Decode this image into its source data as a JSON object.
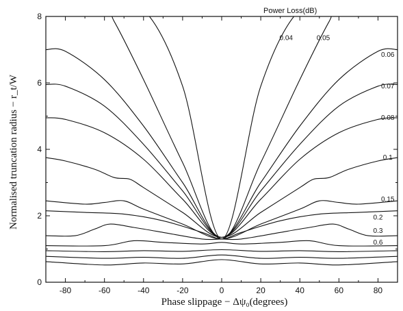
{
  "chart_data": {
    "type": "line",
    "title": "",
    "xlabel": "Phase slippage − Δψ₀(degrees)",
    "ylabel": "Normalised truncation radius − r_t/W",
    "xlim": [
      -90,
      90
    ],
    "ylim": [
      0,
      8
    ],
    "xticks": [
      "-80",
      "-60",
      "-40",
      "-20",
      "0",
      "20",
      "40",
      "60",
      "80"
    ],
    "yticks": [
      "0",
      "2",
      "4",
      "6",
      "8"
    ],
    "grid": false,
    "legend_title": "Power Loss(dB)",
    "series": [
      {
        "name": "0.04",
        "label_at": [
          33,
          7.35
        ],
        "x": [
          -90,
          -60,
          -40,
          -20,
          0,
          20,
          40,
          60,
          90
        ],
        "y": [
          8.2,
          8.2,
          8.2,
          5.9,
          1.3,
          5.9,
          8.2,
          8.2,
          8.2
        ]
      },
      {
        "name": "0.05",
        "label_at": [
          52,
          7.35
        ],
        "x": [
          -90,
          -60,
          -55,
          -40,
          -20,
          0,
          20,
          40,
          55,
          60,
          90
        ],
        "y": [
          8.2,
          8.2,
          7.85,
          6.1,
          3.6,
          1.3,
          3.6,
          6.1,
          7.85,
          8.2,
          8.2
        ]
      },
      {
        "name": "0.06",
        "label_at": [
          85,
          6.85
        ],
        "x": [
          -90,
          -80,
          -60,
          -40,
          -20,
          0,
          20,
          40,
          60,
          80,
          90
        ],
        "y": [
          7.0,
          6.95,
          6.1,
          4.7,
          3.0,
          1.35,
          3.0,
          4.7,
          6.1,
          6.95,
          7.0
        ]
      },
      {
        "name": "0.07",
        "label_at": [
          85,
          5.9
        ],
        "x": [
          -90,
          -80,
          -60,
          -40,
          -20,
          0,
          20,
          40,
          60,
          80,
          90
        ],
        "y": [
          5.95,
          5.9,
          5.3,
          4.15,
          2.75,
          1.35,
          2.75,
          4.15,
          5.3,
          5.9,
          5.95
        ]
      },
      {
        "name": "0.08",
        "label_at": [
          85,
          4.95
        ],
        "x": [
          -90,
          -80,
          -60,
          -40,
          -20,
          0,
          20,
          40,
          60,
          80,
          90
        ],
        "y": [
          4.95,
          4.9,
          4.5,
          3.7,
          2.5,
          1.35,
          2.5,
          3.7,
          4.5,
          4.9,
          4.95
        ]
      },
      {
        "name": "0.1",
        "label_at": [
          85,
          3.75
        ],
        "x": [
          -90,
          -80,
          -65,
          -55,
          -47,
          -40,
          -20,
          0,
          20,
          40,
          47,
          55,
          65,
          80,
          90
        ],
        "y": [
          3.75,
          3.65,
          3.4,
          3.15,
          3.1,
          2.85,
          2.1,
          1.35,
          2.1,
          2.85,
          3.1,
          3.15,
          3.4,
          3.65,
          3.75
        ]
      },
      {
        "name": "0.15",
        "label_at": [
          85,
          2.5
        ],
        "x": [
          -90,
          -70,
          -60,
          -50,
          -40,
          -20,
          0,
          20,
          40,
          50,
          60,
          70,
          90
        ],
        "y": [
          2.45,
          2.35,
          2.4,
          2.45,
          2.2,
          1.75,
          1.3,
          1.75,
          2.2,
          2.45,
          2.4,
          2.35,
          2.45
        ]
      },
      {
        "name": "0.2",
        "label_at": [
          80,
          1.95
        ],
        "x": [
          -90,
          -70,
          -50,
          -30,
          -10,
          0,
          10,
          30,
          50,
          70,
          90
        ],
        "y": [
          2.15,
          2.1,
          2.05,
          1.85,
          1.5,
          1.3,
          1.5,
          1.85,
          2.05,
          2.1,
          2.15
        ]
      },
      {
        "name": "0.3",
        "label_at": [
          80,
          1.55
        ],
        "x": [
          -90,
          -75,
          -65,
          -57,
          -45,
          -30,
          -10,
          0,
          10,
          30,
          45,
          57,
          65,
          75,
          90
        ],
        "y": [
          1.4,
          1.4,
          1.6,
          1.75,
          1.65,
          1.5,
          1.3,
          1.3,
          1.3,
          1.5,
          1.65,
          1.75,
          1.6,
          1.4,
          1.4
        ]
      },
      {
        "name": "0.6",
        "label_at": [
          80,
          1.2
        ],
        "x": [
          -90,
          -60,
          -45,
          -30,
          -10,
          0,
          10,
          30,
          45,
          60,
          90
        ],
        "y": [
          1.1,
          1.1,
          1.25,
          1.2,
          1.15,
          1.2,
          1.15,
          1.2,
          1.25,
          1.1,
          1.1
        ]
      },
      {
        "name": "",
        "x": [
          -90,
          -60,
          -40,
          -20,
          0,
          20,
          40,
          60,
          90
        ],
        "y": [
          0.95,
          0.92,
          0.95,
          0.93,
          0.98,
          0.93,
          0.95,
          0.92,
          0.95
        ]
      },
      {
        "name": "",
        "x": [
          -90,
          -60,
          -40,
          -20,
          0,
          20,
          40,
          60,
          90
        ],
        "y": [
          0.78,
          0.72,
          0.75,
          0.72,
          0.82,
          0.72,
          0.75,
          0.72,
          0.78
        ]
      },
      {
        "name": "",
        "x": [
          -90,
          -60,
          -40,
          -20,
          0,
          20,
          40,
          60,
          90
        ],
        "y": [
          0.62,
          0.52,
          0.58,
          0.55,
          0.68,
          0.55,
          0.58,
          0.52,
          0.62
        ]
      }
    ]
  }
}
